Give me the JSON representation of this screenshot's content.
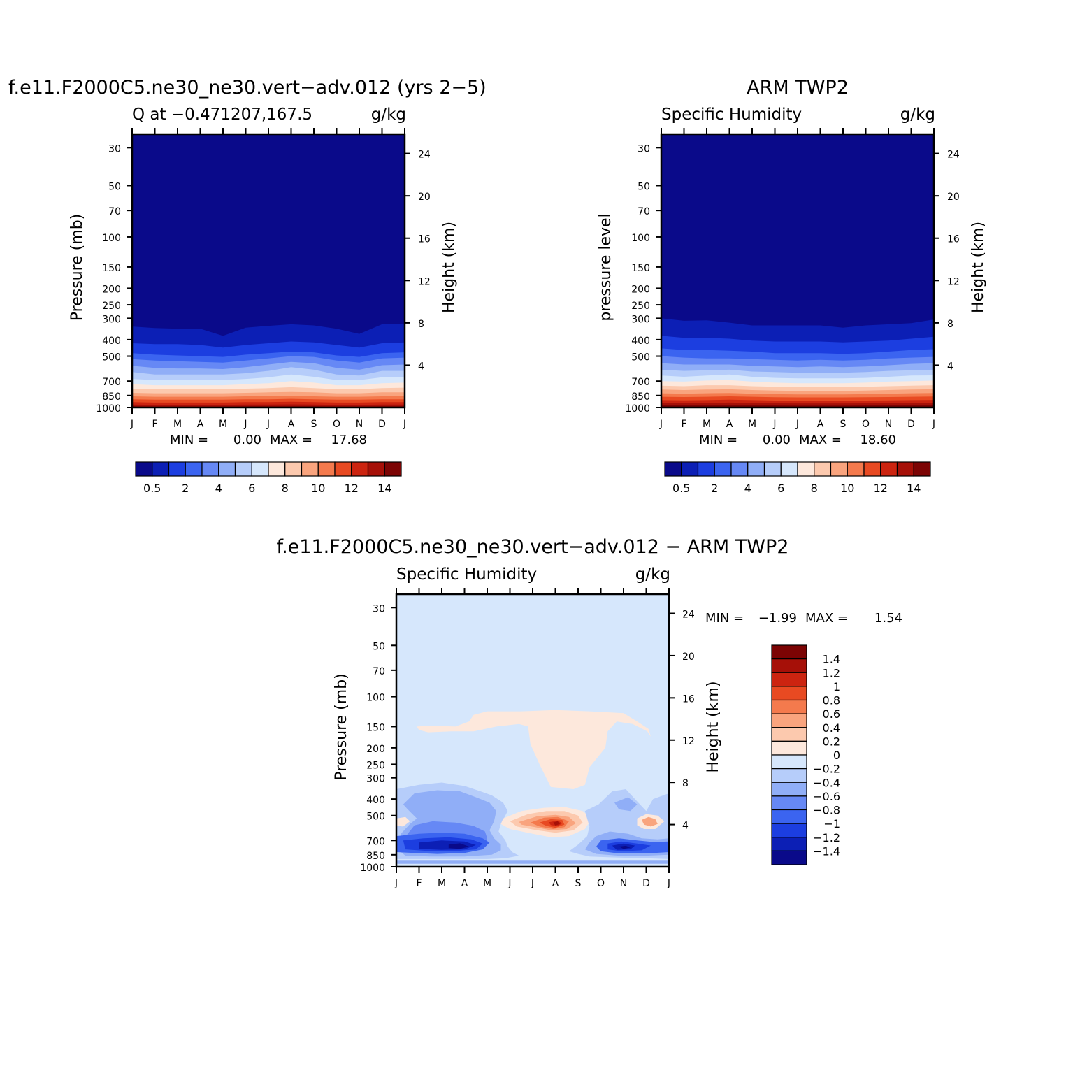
{
  "chart_data": [
    {
      "type": "heatmap",
      "title": "f.e11.F2000C5.ne30_ne30.vert-adv.012 (yrs 2-5)",
      "subtitle_left": "Q at -0.471207,167.5",
      "units": "g/kg",
      "ylabel": "Pressure (mb)",
      "ylabel_right": "Height (km)",
      "x_ticks": [
        "J",
        "F",
        "M",
        "A",
        "M",
        "J",
        "J",
        "A",
        "S",
        "O",
        "N",
        "D",
        "J"
      ],
      "y_ticks": [
        30,
        50,
        70,
        100,
        150,
        200,
        250,
        300,
        400,
        500,
        700,
        850,
        1000
      ],
      "y_ticks_right": [
        24,
        20,
        16,
        12,
        8,
        4
      ],
      "ylim": [
        1000,
        25
      ],
      "stats": {
        "min_label": "MIN =",
        "min": "0.00",
        "max_label": "MAX =",
        "max": "17.68"
      },
      "colorbar_labels": [
        "0.5",
        "2",
        "4",
        "6",
        "8",
        "10",
        "12",
        "14"
      ],
      "layer_tops_mb": [
        [
          335,
          342,
          345,
          345,
          380,
          340,
          332,
          325,
          330,
          345,
          370,
          325,
          325
        ],
        [
          420,
          425,
          425,
          430,
          445,
          430,
          420,
          410,
          415,
          430,
          445,
          420,
          415
        ],
        [
          480,
          490,
          495,
          500,
          505,
          490,
          480,
          470,
          475,
          495,
          505,
          480,
          475
        ],
        [
          520,
          530,
          535,
          540,
          545,
          530,
          515,
          500,
          505,
          530,
          545,
          515,
          510
        ],
        [
          570,
          585,
          590,
          590,
          595,
          580,
          560,
          540,
          550,
          585,
          600,
          565,
          560
        ],
        [
          620,
          640,
          640,
          640,
          640,
          630,
          610,
          580,
          600,
          640,
          650,
          610,
          610
        ],
        [
          680,
          690,
          690,
          690,
          690,
          680,
          665,
          640,
          660,
          690,
          690,
          665,
          660
        ],
        [
          730,
          740,
          740,
          740,
          740,
          730,
          720,
          700,
          715,
          740,
          740,
          720,
          715
        ],
        [
          775,
          780,
          780,
          780,
          780,
          775,
          770,
          760,
          770,
          780,
          780,
          770,
          765
        ],
        [
          820,
          825,
          825,
          825,
          825,
          820,
          815,
          810,
          815,
          825,
          825,
          815,
          815
        ],
        [
          860,
          865,
          865,
          865,
          865,
          860,
          858,
          855,
          860,
          865,
          865,
          860,
          858
        ],
        [
          895,
          900,
          900,
          900,
          900,
          895,
          895,
          890,
          895,
          900,
          900,
          895,
          895
        ],
        [
          930,
          935,
          935,
          935,
          935,
          930,
          930,
          925,
          930,
          935,
          935,
          930,
          930
        ],
        [
          960,
          965,
          965,
          965,
          965,
          960,
          960,
          958,
          960,
          965,
          965,
          960,
          960
        ],
        [
          985,
          990,
          990,
          990,
          990,
          985,
          985,
          985,
          985,
          990,
          990,
          985,
          985
        ]
      ]
    },
    {
      "type": "heatmap",
      "title": "ARM TWP2",
      "subtitle_left": "Specific Humidity",
      "units": "g/kg",
      "ylabel": "pressure level",
      "ylabel_right": "Height (km)",
      "x_ticks": [
        "J",
        "F",
        "M",
        "A",
        "M",
        "J",
        "J",
        "A",
        "S",
        "O",
        "N",
        "D",
        "J"
      ],
      "y_ticks": [
        30,
        50,
        70,
        100,
        150,
        200,
        250,
        300,
        400,
        500,
        700,
        850,
        1000
      ],
      "y_ticks_right": [
        24,
        20,
        16,
        12,
        8,
        4
      ],
      "ylim": [
        1000,
        25
      ],
      "stats": {
        "min_label": "MIN =",
        "min": "0.00",
        "max_label": "MAX =",
        "max": "18.60"
      },
      "colorbar_labels": [
        "0.5",
        "2",
        "4",
        "6",
        "8",
        "10",
        "12",
        "14"
      ],
      "layer_tops_mb": [
        [
          300,
          310,
          308,
          318,
          330,
          330,
          330,
          330,
          340,
          330,
          325,
          320,
          305
        ],
        [
          380,
          390,
          390,
          395,
          405,
          410,
          410,
          410,
          415,
          410,
          405,
          395,
          385
        ],
        [
          450,
          460,
          460,
          465,
          470,
          480,
          480,
          480,
          485,
          480,
          470,
          460,
          455
        ],
        [
          500,
          510,
          515,
          515,
          520,
          525,
          530,
          525,
          530,
          525,
          515,
          510,
          505
        ],
        [
          550,
          560,
          560,
          560,
          570,
          575,
          580,
          575,
          580,
          575,
          565,
          555,
          550
        ],
        [
          600,
          610,
          605,
          600,
          615,
          620,
          625,
          625,
          625,
          620,
          610,
          605,
          600
        ],
        [
          650,
          660,
          650,
          640,
          660,
          670,
          675,
          675,
          675,
          670,
          660,
          650,
          648
        ],
        [
          700,
          705,
          695,
          690,
          705,
          715,
          720,
          720,
          720,
          715,
          705,
          700,
          695
        ],
        [
          745,
          750,
          740,
          740,
          750,
          755,
          760,
          760,
          760,
          755,
          750,
          745,
          740
        ],
        [
          785,
          790,
          785,
          782,
          790,
          795,
          800,
          800,
          800,
          795,
          790,
          785,
          782
        ],
        [
          825,
          830,
          825,
          822,
          830,
          835,
          838,
          838,
          838,
          835,
          830,
          825,
          822
        ],
        [
          865,
          868,
          865,
          860,
          865,
          870,
          872,
          872,
          872,
          870,
          868,
          865,
          862
        ],
        [
          905,
          908,
          905,
          900,
          905,
          910,
          912,
          912,
          912,
          910,
          908,
          905,
          902
        ],
        [
          940,
          942,
          940,
          935,
          940,
          945,
          946,
          946,
          946,
          945,
          942,
          940,
          938
        ],
        [
          970,
          972,
          970,
          966,
          970,
          972,
          974,
          974,
          974,
          972,
          972,
          970,
          968
        ]
      ]
    },
    {
      "type": "heatmap",
      "title": "f.e11.F2000C5.ne30_ne30.vert-adv.012 - ARM TWP2",
      "subtitle_left": "Specific Humidity",
      "units": "g/kg",
      "ylabel": "Pressure (mb)",
      "ylabel_right": "Height (km)",
      "x_ticks": [
        "J",
        "F",
        "M",
        "A",
        "M",
        "J",
        "J",
        "A",
        "S",
        "O",
        "N",
        "D",
        "J"
      ],
      "y_ticks": [
        30,
        50,
        70,
        100,
        150,
        200,
        250,
        300,
        400,
        500,
        700,
        850,
        1000
      ],
      "y_ticks_right": [
        24,
        20,
        16,
        12,
        8,
        4
      ],
      "ylim": [
        1000,
        25
      ],
      "stats": {
        "min_label": "MIN =",
        "min": "-1.99",
        "max_label": "MAX =",
        "max": "1.54"
      },
      "colorbar_labels": [
        "1.4",
        "1.2",
        "1",
        "0.8",
        "0.6",
        "0.4",
        "0.2",
        "0",
        "-0.2",
        "-0.4",
        "-0.6",
        "-0.8",
        "-1",
        "-1.2",
        "-1.4"
      ],
      "background_level": "0 to -0.2",
      "features": [
        {
          "level": "0 to 0.2",
          "desc": "positive anomaly aloft",
          "months": [
            0.9,
            11.2
          ],
          "mb": [
            130,
            330
          ]
        },
        {
          "level": "1.4 max",
          "months": [
            7,
            7
          ],
          "mb": [
            535,
            535
          ],
          "value": 1.54
        },
        {
          "level": "-1.4 min",
          "months": [
            2.8,
            2.8
          ],
          "mb": [
            770,
            770
          ],
          "value": -1.99
        },
        {
          "level": "-1.4",
          "months": [
            9.6,
            9.6
          ],
          "mb": [
            770,
            770
          ]
        }
      ]
    }
  ],
  "colors": {
    "positive_scale": [
      "#0a0a8a",
      "#0c1fb5",
      "#1c3ee0",
      "#3b64f0",
      "#6688f5",
      "#90aef7",
      "#b6cdfa",
      "#d6e7fc",
      "#fde8dc",
      "#fcc9ae",
      "#f9a47e",
      "#f47a4d",
      "#e84a22",
      "#cc2410",
      "#a61008",
      "#7c0404"
    ],
    "diff_scale": [
      "#0a0a8a",
      "#0c1fb5",
      "#1c3ee0",
      "#3b64f0",
      "#6688f5",
      "#90aef7",
      "#b6cdfa",
      "#d6e7fc",
      "#fde8dc",
      "#fcc9ae",
      "#f9a47e",
      "#f47a4d",
      "#e84a22",
      "#cc2410",
      "#a61008",
      "#7c0404"
    ]
  }
}
